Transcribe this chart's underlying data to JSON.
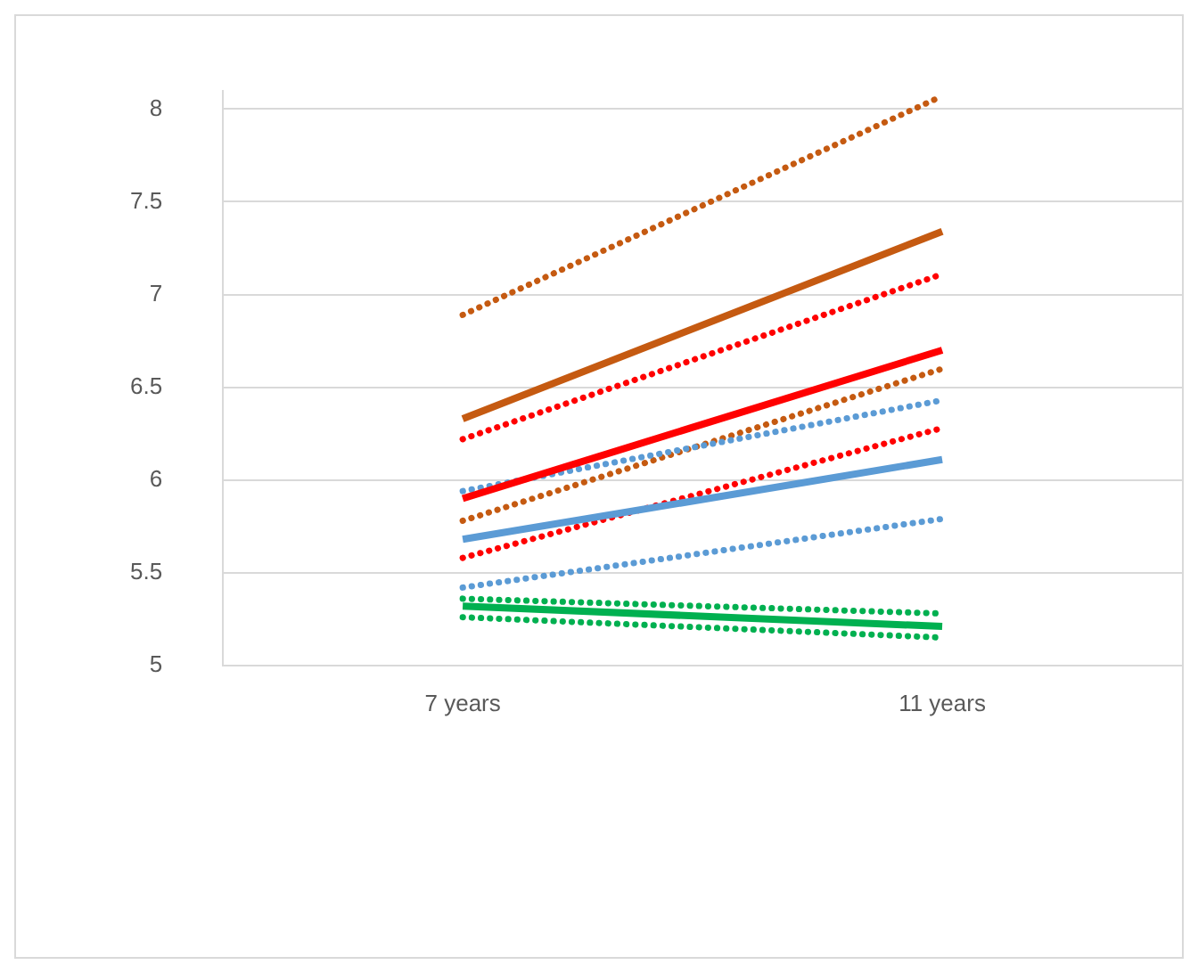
{
  "chart_data": {
    "type": "line",
    "categories": [
      "7 years",
      "11 years"
    ],
    "series": [
      {
        "color": "#c55a11",
        "values": [
          6.89,
          8.07
        ],
        "line_style": "dotted"
      },
      {
        "color": "#c55a11",
        "values": [
          6.33,
          7.34
        ],
        "line_style": "solid"
      },
      {
        "color": "#ff0000",
        "values": [
          6.22,
          7.11
        ],
        "line_style": "dotted"
      },
      {
        "color": "#ff0000",
        "values": [
          5.9,
          6.7
        ],
        "line_style": "solid"
      },
      {
        "color": "#5b9bd5",
        "values": [
          5.94,
          6.43
        ],
        "line_style": "dotted"
      },
      {
        "color": "#c55a11",
        "values": [
          5.78,
          6.6
        ],
        "line_style": "dotted"
      },
      {
        "color": "#5b9bd5",
        "values": [
          5.68,
          6.11
        ],
        "line_style": "solid"
      },
      {
        "color": "#ff0000",
        "values": [
          5.58,
          6.28
        ],
        "line_style": "dotted"
      },
      {
        "color": "#5b9bd5",
        "values": [
          5.42,
          5.79
        ],
        "line_style": "dotted"
      },
      {
        "color": "#00b050",
        "values": [
          5.36,
          5.28
        ],
        "line_style": "dotted"
      },
      {
        "color": "#00b050",
        "values": [
          5.32,
          5.21
        ],
        "line_style": "solid"
      },
      {
        "color": "#00b050",
        "values": [
          5.26,
          5.15
        ],
        "line_style": "dotted"
      }
    ],
    "ylim": [
      5,
      8.1
    ],
    "yticks": [
      5,
      5.5,
      6,
      6.5,
      7,
      7.5,
      8
    ],
    "grid": "y",
    "legend": false,
    "marker": "none"
  }
}
